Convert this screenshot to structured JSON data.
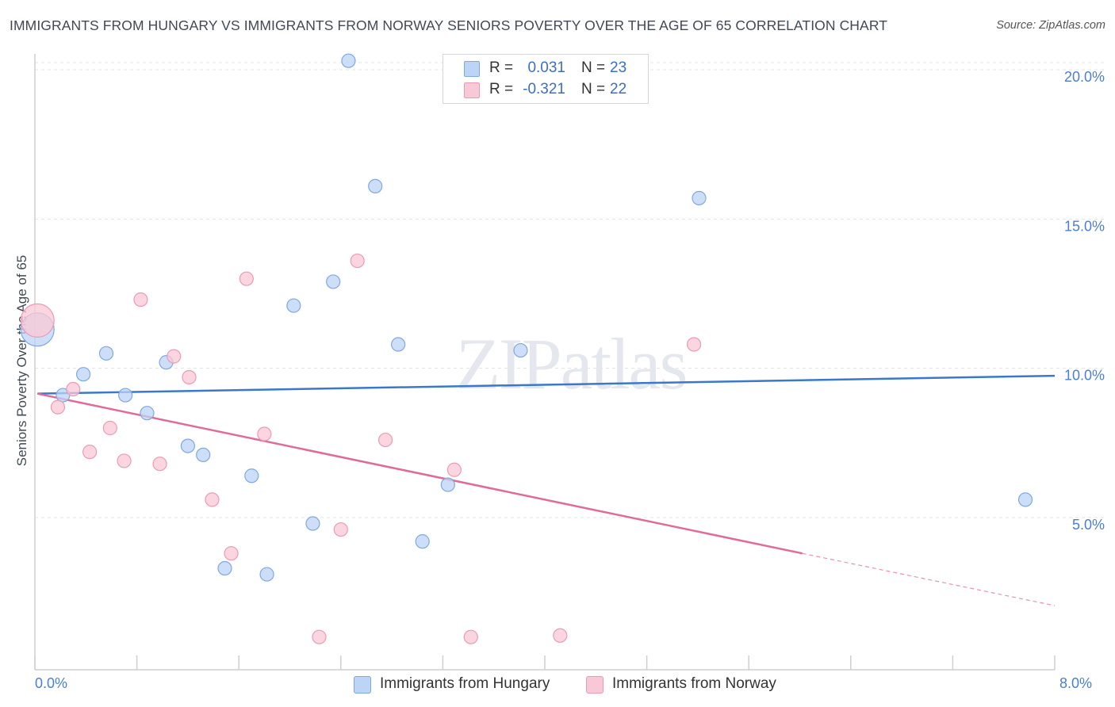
{
  "header": {
    "title": "IMMIGRANTS FROM HUNGARY VS IMMIGRANTS FROM NORWAY SENIORS POVERTY OVER THE AGE OF 65 CORRELATION CHART",
    "source": "Source: ZipAtlas.com"
  },
  "watermark": "ZIPatlas",
  "legend": {
    "hungary": {
      "r_label": "R =",
      "r_value": "0.031",
      "n_label": "N =",
      "n_value": "23"
    },
    "norway": {
      "r_label": "R =",
      "r_value": "-0.321",
      "n_label": "N =",
      "n_value": "22"
    }
  },
  "colors": {
    "hungary_fill": "#bcd4f5",
    "hungary_stroke": "#7fa8e0",
    "hungary_line": "#3a78c9",
    "norway_fill": "#f9c8d6",
    "norway_stroke": "#ec9ab4",
    "norway_line": "#e06b98",
    "grid": "#e3e3e3",
    "axis_label": "#4a7fd1"
  },
  "chart_data": {
    "type": "scatter",
    "title": "IMMIGRANTS FROM HUNGARY VS IMMIGRANTS FROM NORWAY SENIORS POVERTY OVER THE AGE OF 65 CORRELATION CHART",
    "xlabel": "",
    "ylabel": "Seniors Poverty Over the Age of 65",
    "xlim": [
      0,
      8
    ],
    "ylim": [
      0,
      20.5
    ],
    "x_tick_labels": {
      "min": "0.0%",
      "max": "8.0%"
    },
    "y_ticks": [
      {
        "value": 5,
        "label": "5.0%"
      },
      {
        "value": 10,
        "label": "10.0%"
      },
      {
        "value": 15,
        "label": "15.0%"
      },
      {
        "value": 20,
        "label": "20.0%"
      }
    ],
    "legend_position": "top-center",
    "series": [
      {
        "name": "Immigrants from Hungary",
        "color": "#7fa8e0",
        "points": [
          {
            "x": 0.02,
            "y": 11.3,
            "big": true
          },
          {
            "x": 0.22,
            "y": 9.1
          },
          {
            "x": 0.38,
            "y": 9.8
          },
          {
            "x": 0.56,
            "y": 10.5
          },
          {
            "x": 0.71,
            "y": 9.1
          },
          {
            "x": 0.88,
            "y": 8.5
          },
          {
            "x": 1.03,
            "y": 10.2
          },
          {
            "x": 1.2,
            "y": 7.4
          },
          {
            "x": 1.32,
            "y": 7.1
          },
          {
            "x": 1.49,
            "y": 3.3
          },
          {
            "x": 1.7,
            "y": 6.4
          },
          {
            "x": 1.82,
            "y": 3.1
          },
          {
            "x": 2.03,
            "y": 12.1
          },
          {
            "x": 2.18,
            "y": 4.8
          },
          {
            "x": 2.34,
            "y": 12.9
          },
          {
            "x": 2.46,
            "y": 20.3
          },
          {
            "x": 2.67,
            "y": 16.1
          },
          {
            "x": 2.85,
            "y": 10.8
          },
          {
            "x": 3.04,
            "y": 4.2
          },
          {
            "x": 3.24,
            "y": 6.1
          },
          {
            "x": 3.81,
            "y": 10.6
          },
          {
            "x": 5.21,
            "y": 15.7
          },
          {
            "x": 7.77,
            "y": 5.6
          }
        ],
        "trend": {
          "x_start": 0.02,
          "y_start": 9.15,
          "x_end": 8.0,
          "y_end": 9.75
        }
      },
      {
        "name": "Immigrants from Norway",
        "color": "#ec9ab4",
        "points": [
          {
            "x": 0.02,
            "y": 11.6,
            "big": true
          },
          {
            "x": 0.18,
            "y": 8.7
          },
          {
            "x": 0.3,
            "y": 9.3
          },
          {
            "x": 0.43,
            "y": 7.2
          },
          {
            "x": 0.59,
            "y": 8.0
          },
          {
            "x": 0.7,
            "y": 6.9
          },
          {
            "x": 0.83,
            "y": 12.3
          },
          {
            "x": 0.98,
            "y": 6.8
          },
          {
            "x": 1.09,
            "y": 10.4
          },
          {
            "x": 1.21,
            "y": 9.7
          },
          {
            "x": 1.39,
            "y": 5.6
          },
          {
            "x": 1.54,
            "y": 3.8
          },
          {
            "x": 1.66,
            "y": 13.0
          },
          {
            "x": 1.8,
            "y": 7.8
          },
          {
            "x": 2.23,
            "y": 1.0
          },
          {
            "x": 2.4,
            "y": 4.6
          },
          {
            "x": 2.53,
            "y": 13.6
          },
          {
            "x": 2.75,
            "y": 7.6
          },
          {
            "x": 3.29,
            "y": 6.6
          },
          {
            "x": 3.42,
            "y": 1.0
          },
          {
            "x": 4.12,
            "y": 1.05
          },
          {
            "x": 5.17,
            "y": 10.8
          }
        ],
        "trend": {
          "x_start": 0.02,
          "y_start": 9.15,
          "x_end": 6.02,
          "y_end": 3.8,
          "dashed_to_x": 8.0,
          "dashed_to_y": 2.05
        }
      }
    ]
  },
  "bottom_legend": {
    "hungary_label": "Immigrants from Hungary",
    "norway_label": "Immigrants from Norway"
  }
}
